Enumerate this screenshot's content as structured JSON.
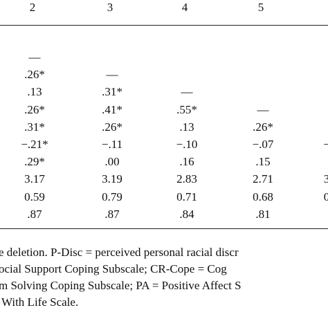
{
  "table": {
    "header": [
      "2",
      "3",
      "4",
      "5"
    ],
    "rows": [
      [
        "—"
      ],
      [
        ".26*",
        "—"
      ],
      [
        ".13",
        ".31*",
        "—"
      ],
      [
        ".26*",
        ".41*",
        ".55*",
        "—"
      ],
      [
        ".31*",
        ".26*",
        ".13",
        ".26*"
      ],
      [
        "−.21*",
        "−.11",
        "−.10",
        "−.07",
        "−"
      ],
      [
        ".29*",
        ".00",
        ".16",
        ".15"
      ],
      [
        "3.17",
        "3.19",
        "2.83",
        "2.71",
        "3"
      ],
      [
        "0.59",
        "0.79",
        "0.71",
        "0.68",
        "0"
      ],
      [
        ".87",
        ".87",
        ".84",
        ".81"
      ]
    ]
  },
  "note": [
    "e deletion. P-Disc = perceived personal racial discr",
    "ocial Support Coping Subscale; CR-Cope = Cog",
    "m Solving Coping Subscale; PA = Positive Affect S",
    "With Life Scale."
  ]
}
